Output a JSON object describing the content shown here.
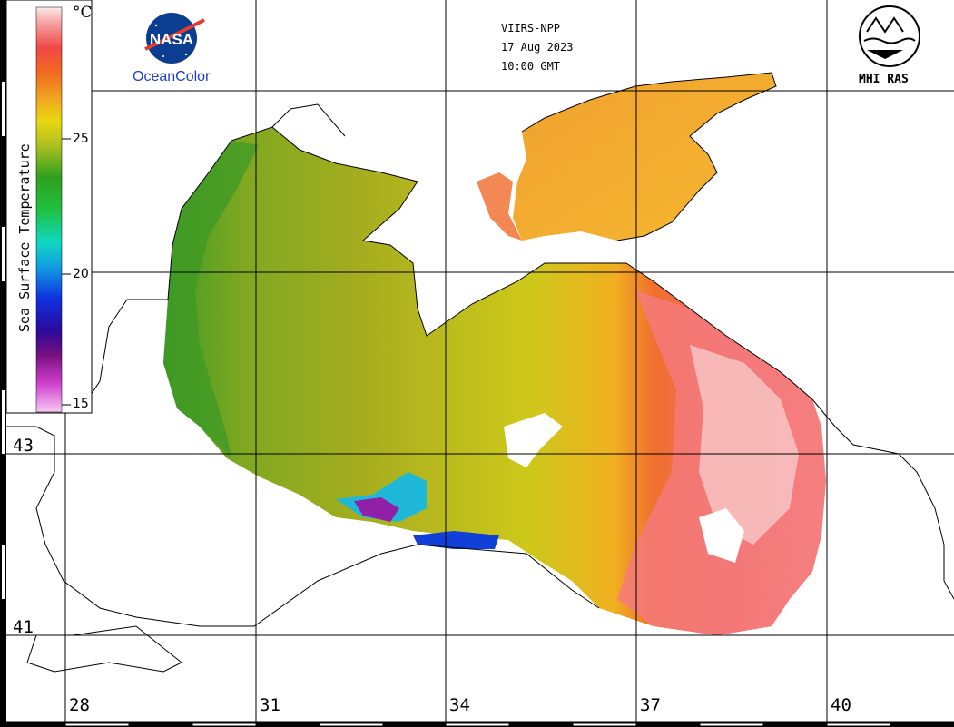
{
  "satellite": {
    "sensor": "VIIRS-NPP",
    "date": "17 Aug 2023",
    "time": "10:00 GMT"
  },
  "logos": {
    "left_caption": "OceanColor",
    "left_emblem_text": "NASA",
    "right_caption": "MHI RAS"
  },
  "colorbar": {
    "title": "Sea Surface Temperature",
    "unit": "°C",
    "ticks": [
      "25",
      "20",
      "15"
    ],
    "range": [
      15,
      30
    ],
    "colors": [
      "#f4b6f0",
      "#d040d0",
      "#7a1080",
      "#2a0a9a",
      "#1030e0",
      "#10a0e0",
      "#10d8c0",
      "#20c040",
      "#30a020",
      "#a0b020",
      "#e0d810",
      "#f0c020",
      "#f08020",
      "#f04a4a",
      "#f49090",
      "#fbe4e4"
    ]
  },
  "grid": {
    "longitudes": [
      "28",
      "31",
      "34",
      "37",
      "40"
    ],
    "latitudes": [
      "43",
      "41"
    ]
  }
}
